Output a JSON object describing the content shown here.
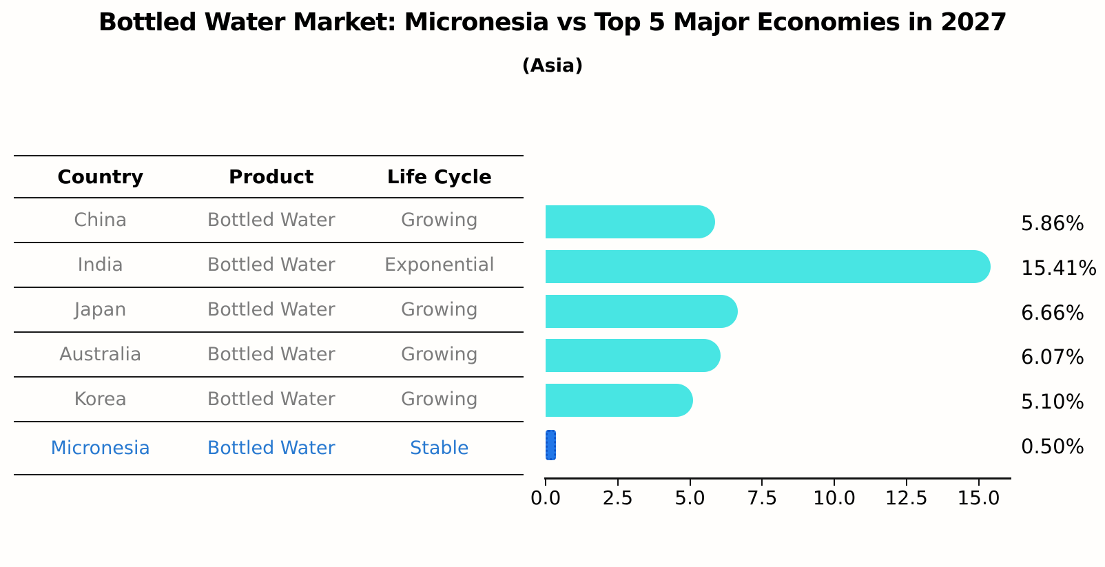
{
  "title": "Bottled Water Market: Micronesia vs Top 5 Major Economies in 2027",
  "subtitle": "(Asia)",
  "table": {
    "headers": [
      "Country",
      "Product",
      "Life Cycle"
    ],
    "rows": [
      {
        "country": "China",
        "product": "Bottled Water",
        "life_cycle": "Growing",
        "highlight": false
      },
      {
        "country": "India",
        "product": "Bottled Water",
        "life_cycle": "Exponential",
        "highlight": false
      },
      {
        "country": "Japan",
        "product": "Bottled Water",
        "life_cycle": "Growing",
        "highlight": false
      },
      {
        "country": "Australia",
        "product": "Bottled Water",
        "life_cycle": "Growing",
        "highlight": false
      },
      {
        "country": "Korea",
        "product": "Bottled Water",
        "life_cycle": "Growing",
        "highlight": false
      },
      {
        "country": "Micronesia",
        "product": "Bottled Water",
        "life_cycle": "Stable",
        "highlight": true
      }
    ]
  },
  "chart_data": {
    "type": "bar",
    "orientation": "horizontal",
    "title": "Bottled Water Market: Micronesia vs Top 5 Major Economies in 2027",
    "subtitle": "(Asia)",
    "categories": [
      "China",
      "India",
      "Japan",
      "Australia",
      "Korea",
      "Micronesia"
    ],
    "values": [
      5.86,
      15.41,
      6.66,
      6.07,
      5.1,
      0.5
    ],
    "value_labels": [
      "5.86%",
      "15.41%",
      "6.66%",
      "6.07%",
      "5.10%",
      "0.50%"
    ],
    "x_tick_values": [
      0.0,
      2.5,
      5.0,
      7.5,
      10.0,
      12.5,
      15.0
    ],
    "x_tick_labels": [
      "0.0",
      "2.5",
      "5.0",
      "7.5",
      "10.0",
      "12.5",
      "15.0"
    ],
    "xlim": [
      0,
      16.2
    ],
    "grid": false,
    "legend": false,
    "bar_color": "#48e5e3",
    "highlight_bar_color": "#2277e8",
    "highlight_bar_edge_color": "#1257c8",
    "highlight_text_color": "#2879d0",
    "highlight_index": 5
  }
}
